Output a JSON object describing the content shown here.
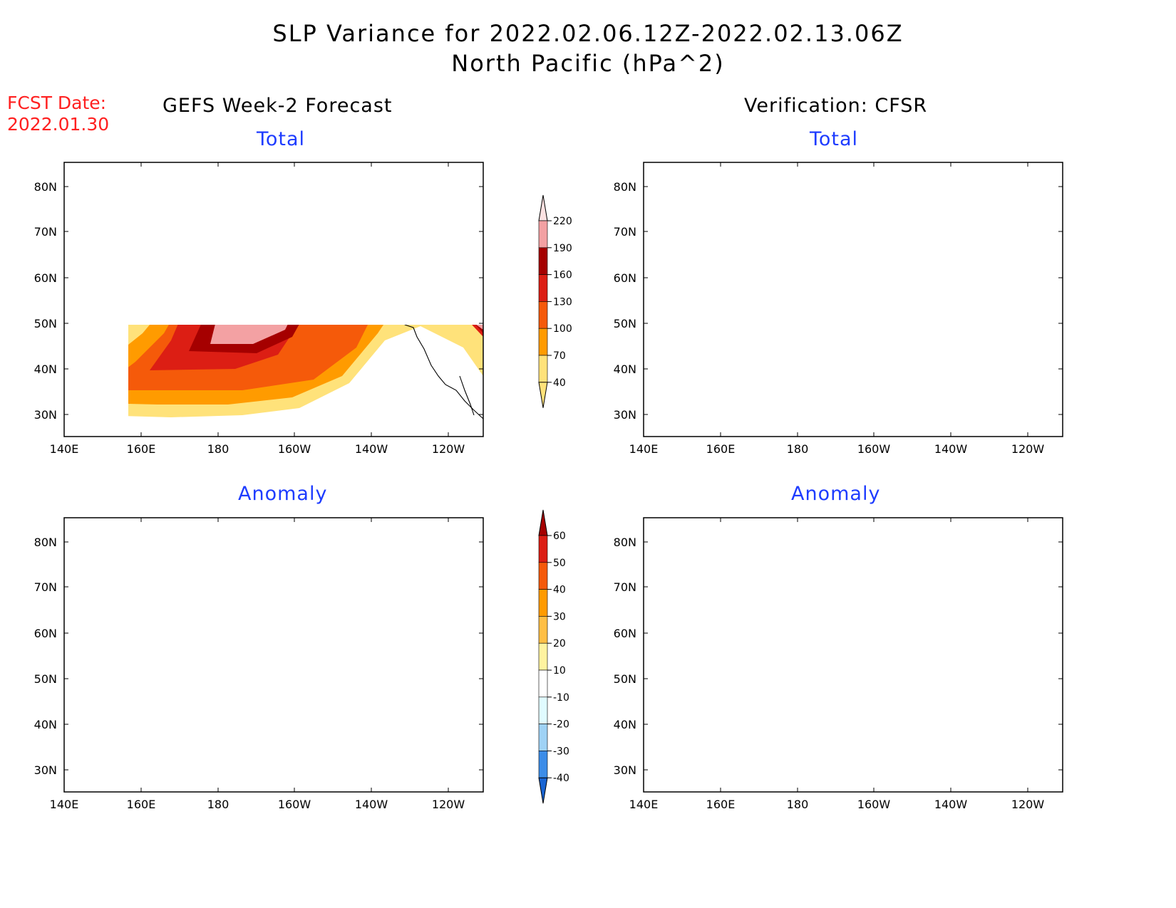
{
  "title": {
    "line1": "SLP Variance for 2022.02.06.12Z-2022.02.13.06Z",
    "line2": "North Pacific (hPa^2)"
  },
  "fcst": {
    "label": "FCST Date:",
    "date": "2022.01.30"
  },
  "columns": {
    "left": "GEFS Week-2 Forecast",
    "right": "Verification: CFSR"
  },
  "panels": {
    "total": "Total",
    "anomaly": "Anomaly"
  },
  "lon_ticks": [
    "140E",
    "160E",
    "180",
    "160W",
    "140W",
    "120W"
  ],
  "lat_ticks": [
    "80N",
    "70N",
    "60N",
    "50N",
    "40N",
    "30N"
  ],
  "total_scale": {
    "levels": [
      "220",
      "190",
      "160",
      "130",
      "100",
      "70",
      "40"
    ],
    "colors": [
      "#fde2e2",
      "#f3a1a3",
      "#a50000",
      "#dc1e14",
      "#f55a0a",
      "#ff9b00",
      "#ffe27a"
    ]
  },
  "anomaly_scale": {
    "levels": [
      "60",
      "50",
      "40",
      "30",
      "20",
      "10",
      "-10",
      "-20",
      "-30",
      "-40"
    ],
    "colors": [
      "#a50000",
      "#dc1e14",
      "#f55a0a",
      "#ff9b00",
      "#ffbf45",
      "#fff3a0",
      "#ffffff",
      "#e0fbff",
      "#9fd2f5",
      "#3c8de8",
      "#1964d2"
    ]
  }
}
